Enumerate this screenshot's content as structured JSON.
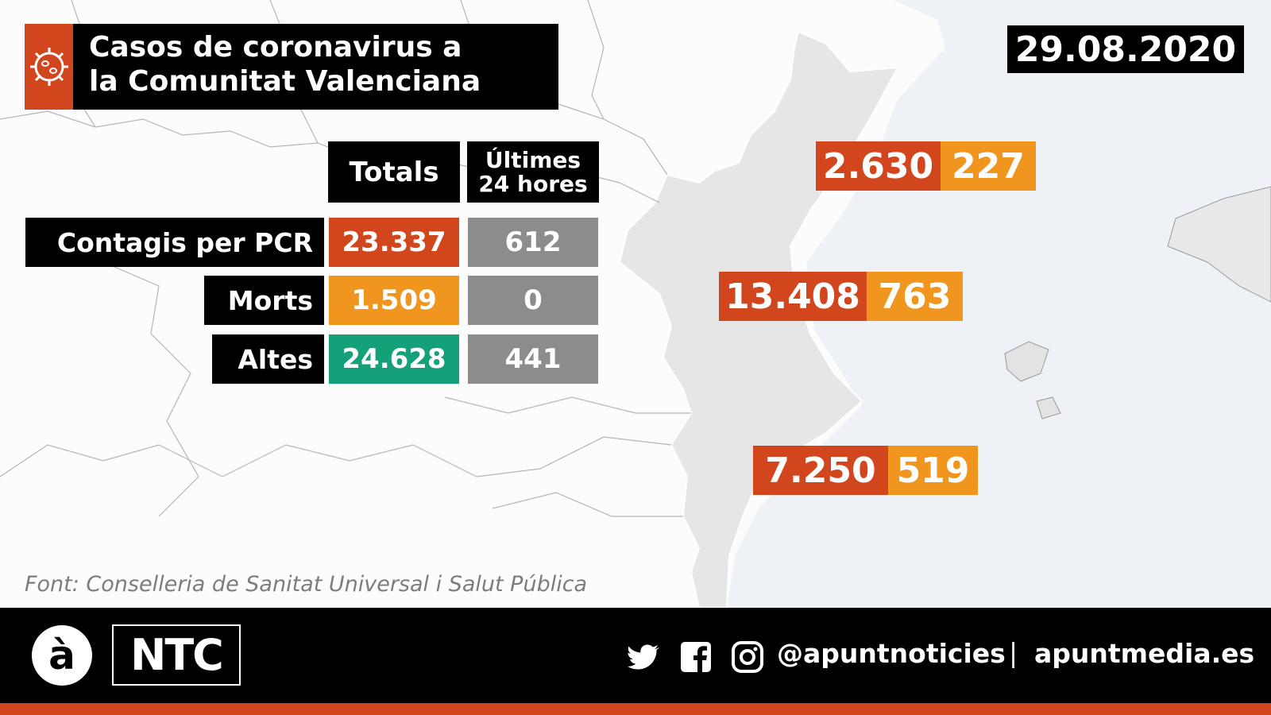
{
  "title": {
    "line1": "Casos de coronavirus a",
    "line2": "la Comunitat Valenciana"
  },
  "date": "29.08.2020",
  "colors": {
    "red": "#d2461e",
    "orange": "#f0961e",
    "green": "#14a078",
    "gray": "#8c8c8c",
    "black": "#000000"
  },
  "chart_data": {
    "type": "table",
    "columns": [
      "Totals",
      "Últimes 24 hores"
    ],
    "column_header_24h": {
      "line1": "Últimes",
      "line2": "24 hores"
    },
    "rows": [
      {
        "label": "Contagis per PCR",
        "total": "23.337",
        "last24h": "612"
      },
      {
        "label": "Morts",
        "total": "1.509",
        "last24h": "0"
      },
      {
        "label": "Altes",
        "total": "24.628",
        "last24h": "441"
      }
    ],
    "regions": [
      {
        "total": "2.630",
        "last24h": "227"
      },
      {
        "total": "13.408",
        "last24h": "763"
      },
      {
        "total": "7.250",
        "last24h": "519"
      }
    ]
  },
  "source": "Font: Conselleria de Sanitat Universal i Salut Pública",
  "footer": {
    "logo_a": "à",
    "logo_ntc": "NTC",
    "icons": [
      "twitter-icon",
      "facebook-icon",
      "instagram-icon"
    ],
    "handle": "@apuntnoticies",
    "separator": "|",
    "site": "apuntmedia.es"
  }
}
